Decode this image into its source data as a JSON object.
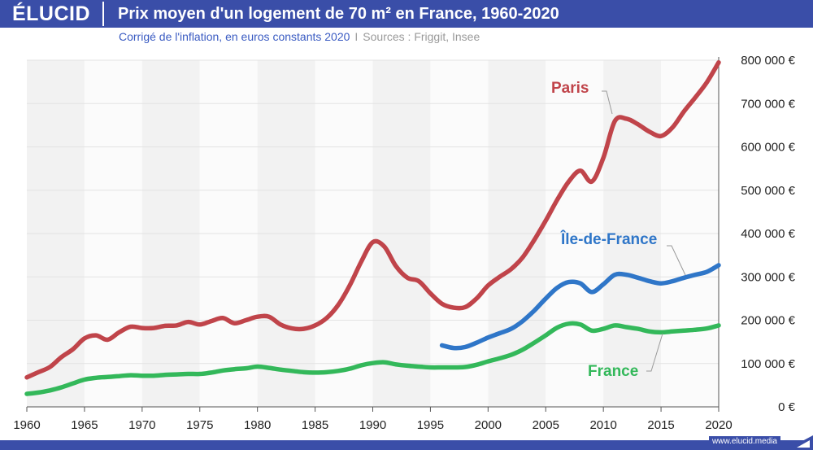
{
  "header": {
    "logo": "ÉLUCID",
    "title": "Prix moyen d'un logement de 70 m² en France, 1960-2020",
    "subtitle_main": "Corrigé de l'inflation, en euros constants 2020",
    "subtitle_sep": "I",
    "subtitle_sources": "Sources : Friggit, Insee"
  },
  "footer": {
    "website": "www.elucid.media"
  },
  "colors": {
    "brand": "#3a4ea8",
    "paris": "#c0444a",
    "idf": "#2f76c8",
    "france": "#33b85a",
    "band": "#f2f2f2"
  },
  "chart_data": {
    "type": "line",
    "title": "Prix moyen d'un logement de 70 m² en France, 1960-2020",
    "xlabel": "",
    "ylabel": "",
    "xlim": [
      1960,
      2020
    ],
    "ylim": [
      0,
      800000
    ],
    "x_ticks": [
      "1960",
      "1965",
      "1970",
      "1975",
      "1980",
      "1985",
      "1990",
      "1995",
      "2000",
      "2005",
      "2010",
      "2015",
      "2020"
    ],
    "x_tick_values": [
      1960,
      1965,
      1970,
      1975,
      1980,
      1985,
      1990,
      1995,
      2000,
      2005,
      2010,
      2015,
      2020
    ],
    "y_ticks": [
      "0 €",
      "100 000 €",
      "200 000 €",
      "300 000 €",
      "400 000 €",
      "500 000 €",
      "600 000 €",
      "700 000 €",
      "800 000 €"
    ],
    "y_tick_values": [
      0,
      100000,
      200000,
      300000,
      400000,
      500000,
      600000,
      700000,
      800000
    ],
    "legend_position": "inline-labels",
    "series": [
      {
        "name": "Paris",
        "color": "#c0444a",
        "x": [
          1960,
          1961,
          1962,
          1963,
          1964,
          1965,
          1966,
          1967,
          1968,
          1969,
          1970,
          1971,
          1972,
          1973,
          1974,
          1975,
          1976,
          1977,
          1978,
          1979,
          1980,
          1981,
          1982,
          1983,
          1984,
          1985,
          1986,
          1987,
          1988,
          1989,
          1990,
          1991,
          1992,
          1993,
          1994,
          1995,
          1996,
          1997,
          1998,
          1999,
          2000,
          2001,
          2002,
          2003,
          2004,
          2005,
          2006,
          2007,
          2008,
          2009,
          2010,
          2011,
          2012,
          2013,
          2014,
          2015,
          2016,
          2017,
          2018,
          2019,
          2020
        ],
        "values": [
          68000,
          80000,
          92000,
          115000,
          133000,
          158000,
          165000,
          155000,
          172000,
          185000,
          182000,
          182000,
          187000,
          188000,
          196000,
          190000,
          198000,
          205000,
          193000,
          200000,
          208000,
          208000,
          190000,
          181000,
          180000,
          188000,
          205000,
          235000,
          280000,
          335000,
          380000,
          370000,
          325000,
          298000,
          290000,
          262000,
          238000,
          229000,
          230000,
          250000,
          280000,
          300000,
          318000,
          345000,
          385000,
          430000,
          478000,
          520000,
          545000,
          520000,
          575000,
          660000,
          665000,
          652000,
          635000,
          625000,
          645000,
          682000,
          715000,
          750000,
          795000
        ]
      },
      {
        "name": "Île-de-France",
        "color": "#2f76c8",
        "x": [
          1996,
          1997,
          1998,
          1999,
          2000,
          2001,
          2002,
          2003,
          2004,
          2005,
          2006,
          2007,
          2008,
          2009,
          2010,
          2011,
          2012,
          2013,
          2014,
          2015,
          2016,
          2017,
          2018,
          2019,
          2020
        ],
        "values": [
          142000,
          136000,
          138000,
          148000,
          160000,
          170000,
          180000,
          198000,
          222000,
          250000,
          275000,
          288000,
          285000,
          265000,
          283000,
          305000,
          305000,
          298000,
          290000,
          285000,
          290000,
          298000,
          305000,
          312000,
          327000
        ]
      },
      {
        "name": "France",
        "color": "#33b85a",
        "x": [
          1960,
          1961,
          1962,
          1963,
          1964,
          1965,
          1966,
          1967,
          1968,
          1969,
          1970,
          1971,
          1972,
          1973,
          1974,
          1975,
          1976,
          1977,
          1978,
          1979,
          1980,
          1981,
          1982,
          1983,
          1984,
          1985,
          1986,
          1987,
          1988,
          1989,
          1990,
          1991,
          1992,
          1993,
          1994,
          1995,
          1996,
          1997,
          1998,
          1999,
          2000,
          2001,
          2002,
          2003,
          2004,
          2005,
          2006,
          2007,
          2008,
          2009,
          2010,
          2011,
          2012,
          2013,
          2014,
          2015,
          2016,
          2017,
          2018,
          2019,
          2020
        ],
        "values": [
          30000,
          33000,
          38000,
          45000,
          54000,
          63000,
          67000,
          69000,
          71000,
          73000,
          72000,
          72000,
          74000,
          75000,
          76000,
          76000,
          79000,
          84000,
          87000,
          89000,
          93000,
          90000,
          86000,
          83000,
          80000,
          79000,
          80000,
          83000,
          88000,
          96000,
          101000,
          103000,
          98000,
          95000,
          93000,
          91000,
          91000,
          91000,
          92000,
          97000,
          105000,
          112000,
          120000,
          132000,
          148000,
          165000,
          183000,
          192000,
          190000,
          176000,
          180000,
          188000,
          184000,
          180000,
          174000,
          172000,
          174000,
          176000,
          178000,
          181000,
          188000
        ]
      }
    ],
    "annotations": [
      {
        "text": "Paris",
        "series": "Paris"
      },
      {
        "text": "Île-de-France",
        "series": "Île-de-France"
      },
      {
        "text": "France",
        "series": "France"
      }
    ]
  }
}
